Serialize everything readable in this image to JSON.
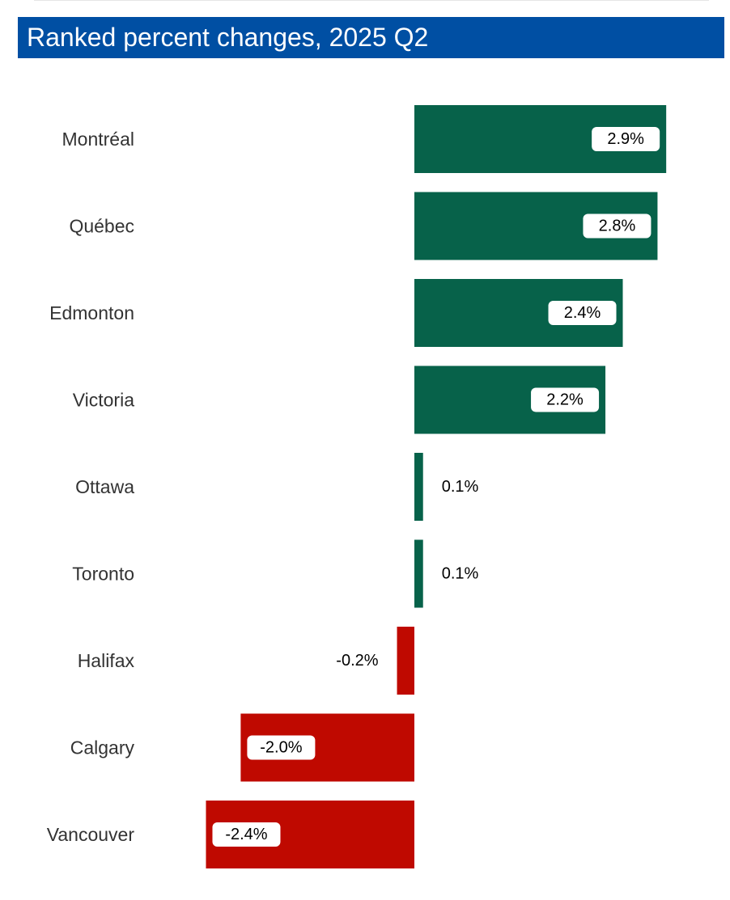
{
  "title": "Ranked percent changes, 2025 Q2",
  "colors": {
    "header": "#004fa3",
    "positive": "#07624a",
    "negative": "#bf0900"
  },
  "chart_data": {
    "type": "bar",
    "orientation": "horizontal",
    "title": "Ranked percent changes, 2025 Q2",
    "categories": [
      "Montréal",
      "Québec",
      "Edmonton",
      "Victoria",
      "Ottawa",
      "Toronto",
      "Halifax",
      "Calgary",
      "Vancouver"
    ],
    "values": [
      2.9,
      2.8,
      2.4,
      2.2,
      0.1,
      0.1,
      -0.2,
      -2.0,
      -2.4
    ],
    "labels": [
      "2.9%",
      "2.8%",
      "2.4%",
      "2.2%",
      "0.1%",
      "0.1%",
      "-0.2%",
      "-2.0%",
      "-2.4%"
    ],
    "xlim": [
      -2.4,
      2.9
    ],
    "grid": false,
    "legend": "none"
  }
}
